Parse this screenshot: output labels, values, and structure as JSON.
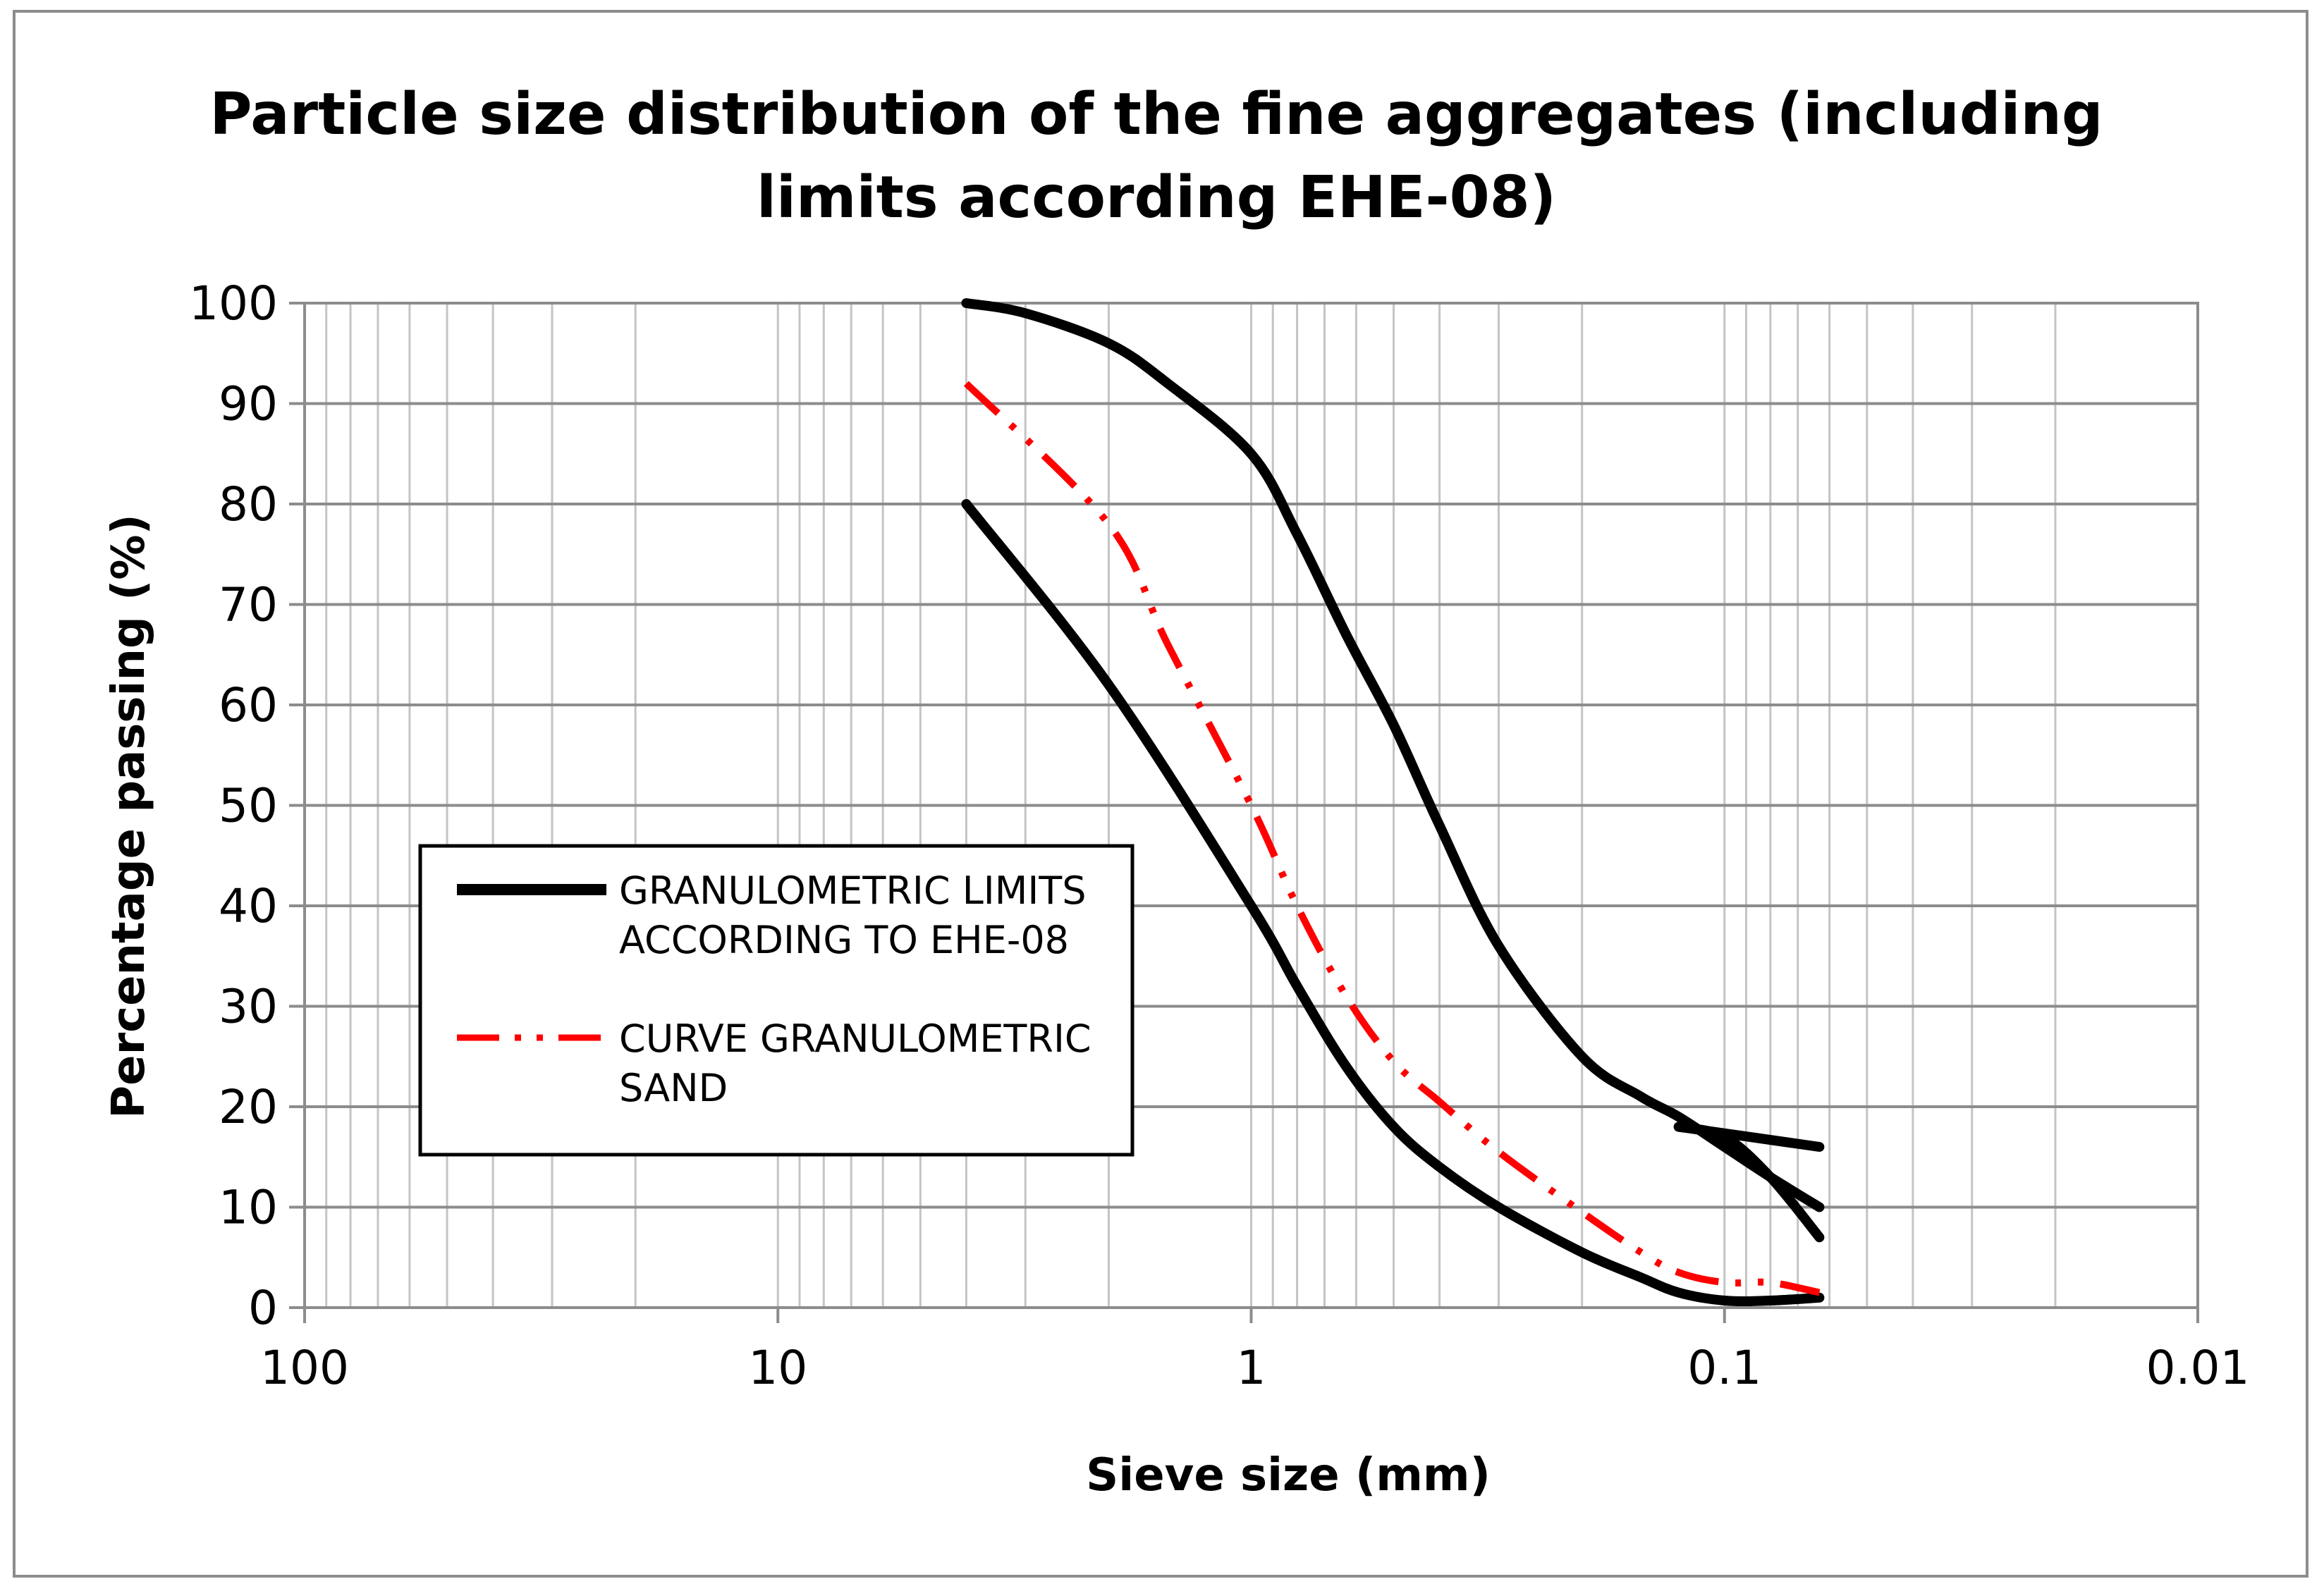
{
  "chart_data": {
    "type": "line",
    "title_lines": [
      "Particle size distribution of the fine aggregates (including",
      "limits according EHE-08)"
    ],
    "xlabel": "Sieve size (mm)",
    "ylabel": "Percentage passing (%)",
    "x_scale": "log",
    "x_reversed": true,
    "xlim": [
      100,
      0.01
    ],
    "ylim": [
      0,
      100
    ],
    "x_ticks": [
      100,
      10,
      1,
      0.1,
      0.01
    ],
    "x_tick_labels": [
      "100",
      "10",
      "1",
      "0.1",
      "0.01"
    ],
    "y_ticks": [
      0,
      10,
      20,
      30,
      40,
      50,
      60,
      70,
      80,
      90,
      100
    ],
    "y_tick_labels": [
      "0",
      "10",
      "20",
      "30",
      "40",
      "50",
      "60",
      "70",
      "80",
      "90",
      "100"
    ],
    "grid": "major and minor",
    "legend_position": "center-left",
    "legend": [
      {
        "label_lines": [
          "GRANULOMETRIC LIMITS",
          "ACCORDING TO EHE-08"
        ],
        "color": "#000000",
        "style": "solid"
      },
      {
        "label_lines": [
          "CURVE GRANULOMETRIC",
          "SAND"
        ],
        "color": "#ff0000",
        "style": "dash-dot-dot"
      }
    ],
    "series": [
      {
        "legend_index": 0,
        "color": "#000000",
        "style": "solid",
        "x": [
          4,
          3,
          2,
          1.5,
          1,
          0.8,
          0.63,
          0.5,
          0.4,
          0.3,
          0.2,
          0.15,
          0.125,
          0.1,
          0.08,
          0.063
        ],
        "y": [
          100,
          99,
          96,
          92,
          85,
          77,
          67,
          58,
          48,
          36,
          25,
          21,
          19,
          16,
          13,
          10
        ]
      },
      {
        "legend_index": 0,
        "color": "#000000",
        "style": "solid",
        "x": [
          4,
          2,
          1,
          0.8,
          0.63,
          0.5,
          0.4,
          0.3,
          0.2,
          0.15,
          0.125,
          0.1,
          0.08,
          0.063
        ],
        "y": [
          80,
          62,
          40,
          32,
          24,
          18,
          14,
          10,
          5.5,
          3,
          1.5,
          0.7,
          0.7,
          1
        ]
      },
      {
        "legend_index": 0,
        "color": "#000000",
        "style": "solid",
        "x": [
          0.125,
          0.1,
          0.08,
          0.063
        ],
        "y": [
          18,
          17,
          13,
          7
        ]
      },
      {
        "legend_index": 0,
        "color": "#000000",
        "style": "solid",
        "x": [
          0.125,
          0.063
        ],
        "y": [
          18,
          16
        ]
      },
      {
        "legend_index": 1,
        "color": "#ff0000",
        "style": "dash-dot-dot",
        "x": [
          4,
          2,
          1.5,
          1,
          0.8,
          0.63,
          0.5,
          0.4,
          0.3,
          0.2,
          0.15,
          0.125,
          0.1,
          0.08,
          0.063
        ],
        "y": [
          92,
          78,
          66,
          50,
          40,
          31,
          24.5,
          20.5,
          15.5,
          9.5,
          5.5,
          3.5,
          2.5,
          2.5,
          1.5
        ]
      }
    ]
  }
}
